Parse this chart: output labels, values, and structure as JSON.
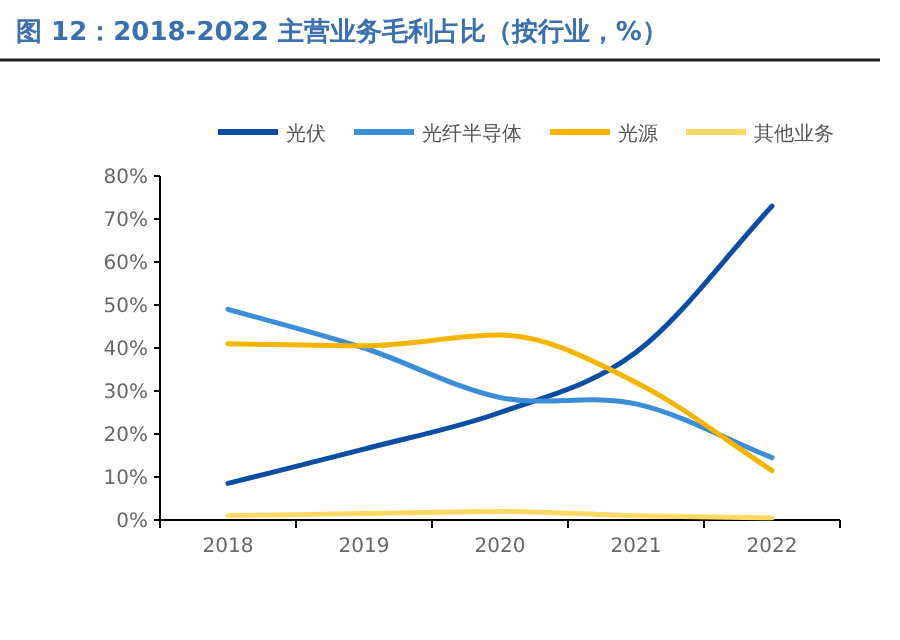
{
  "chart_data": {
    "type": "line",
    "title": "图 12：2018-2022 主营业务毛利占比（按行业，%）",
    "categories": [
      "2018",
      "2019",
      "2020",
      "2021",
      "2022"
    ],
    "series": [
      {
        "name": "光伏",
        "color": "#0b4da2",
        "values": [
          8.5,
          16.5,
          25,
          39,
          73
        ]
      },
      {
        "name": "光纤半导体",
        "color": "#3c8dd8",
        "values": [
          49,
          40,
          28.5,
          27,
          14.5
        ]
      },
      {
        "name": "光源",
        "color": "#f5b400",
        "values": [
          41,
          40.5,
          43,
          32,
          11.5
        ]
      },
      {
        "name": "其他业务",
        "color": "#fdd865",
        "values": [
          1,
          1.5,
          2,
          1,
          0.5
        ]
      }
    ],
    "ylim": [
      0,
      80
    ],
    "yticks": [
      {
        "value": 0,
        "label": "0%"
      },
      {
        "value": 10,
        "label": "10%"
      },
      {
        "value": 20,
        "label": "20%"
      },
      {
        "value": 30,
        "label": "30%"
      },
      {
        "value": 40,
        "label": "40%"
      },
      {
        "value": 50,
        "label": "50%"
      },
      {
        "value": 60,
        "label": "60%"
      },
      {
        "value": 70,
        "label": "70%"
      },
      {
        "value": 80,
        "label": "80%"
      }
    ],
    "grid": false,
    "legend": "top",
    "marker": "none",
    "line_style": "solid"
  }
}
